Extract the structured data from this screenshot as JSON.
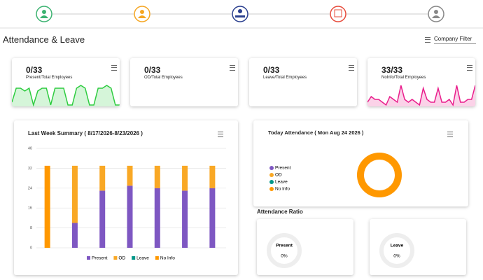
{
  "header": {
    "title": "Attendance & Leave",
    "filter": "Company Filter"
  },
  "cards": [
    {
      "value": "0/33",
      "label": "Present/Total Employees",
      "color": "#2ecc40",
      "values": [
        3,
        8,
        8,
        7,
        8,
        2,
        7,
        8,
        8,
        2,
        8,
        8,
        8,
        2,
        2,
        8,
        9,
        8,
        2,
        2,
        8,
        8,
        9,
        8,
        2,
        2
      ]
    },
    {
      "value": "0/33",
      "label": "OD/Total Employees"
    },
    {
      "value": "0/33",
      "label": "Leave/Total Employees"
    },
    {
      "value": "33/33",
      "label": "NoInfo/Total Employees",
      "color": "#e91e8c",
      "values": [
        3,
        5,
        4,
        4,
        3,
        2,
        5,
        4,
        3,
        9,
        4,
        3,
        4,
        3,
        2,
        8,
        4,
        3,
        3,
        8,
        3,
        3,
        4,
        2,
        9,
        3,
        3,
        4,
        4,
        9
      ]
    }
  ],
  "chart_data": [
    {
      "type": "bar",
      "stacked": true,
      "title": "Last Week Summary ( 8/17/2026-8/23/2026 )",
      "categories": [
        null,
        null,
        null,
        null,
        null,
        null,
        null
      ],
      "series": [
        {
          "name": "Present",
          "color": "#7e57c2",
          "values": [
            0,
            10,
            23,
            25,
            24,
            23,
            24
          ]
        },
        {
          "name": "OD",
          "color": "#f9a825",
          "values": [
            0,
            23,
            10,
            8,
            9,
            10,
            9
          ]
        },
        {
          "name": "Leave",
          "color": "#009688",
          "values": [
            0,
            0,
            0,
            0,
            0,
            0,
            0
          ]
        },
        {
          "name": "No Info",
          "color": "#ff9800",
          "values": [
            33,
            0,
            0,
            0,
            0,
            0,
            0
          ]
        }
      ],
      "ylim": [
        0,
        40
      ],
      "yticks": [
        0,
        8,
        16,
        24,
        32,
        40
      ],
      "grid": true,
      "legend": "bottom"
    },
    {
      "type": "pie",
      "donut": true,
      "title": "Today Attendance ( Mon Aug 24 2026 )",
      "categories": [
        "Present",
        "OD",
        "Leave",
        "No Info"
      ],
      "values": [
        0,
        0,
        0,
        33
      ],
      "colors": [
        "#7e57c2",
        "#f9a825",
        "#009688",
        "#ff9800"
      ],
      "legend": "left"
    }
  ],
  "ratio": {
    "title": "Attendance Ratio",
    "items": [
      {
        "name": "Present",
        "value": 0,
        "value_label": "0%"
      },
      {
        "name": "Leave",
        "value": 0,
        "value_label": "0%"
      }
    ]
  }
}
